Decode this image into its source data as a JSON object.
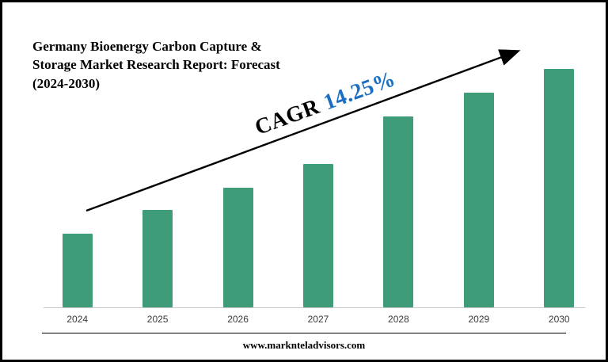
{
  "title": {
    "text": "Germany Bioenergy Carbon Capture & Storage Market Research Report: Forecast (2024-2030)"
  },
  "annotation": {
    "cagr_label": "CAGR",
    "cagr_value": "14.25%",
    "value_color": "#1b6ec2"
  },
  "footer": {
    "website": "www.marknteladvisors.com"
  },
  "chart_data": {
    "type": "bar",
    "title": "Germany Bioenergy Carbon Capture & Storage Market Research Report: Forecast (2024-2030)",
    "categories": [
      "2024",
      "2025",
      "2026",
      "2027",
      "2028",
      "2029",
      "2030"
    ],
    "values": [
      31,
      41,
      50,
      60,
      80,
      90,
      100
    ],
    "unit": "relative index (2030 = 100, axis values not labeled in image)",
    "bar_color": "#3e9c78",
    "annotation": "CAGR 14.25%",
    "trend": "increasing, straight upward arrow from first bar to last bar",
    "xlabel": "",
    "ylabel": "",
    "ylim": [
      0,
      100
    ],
    "grid": false,
    "y_axis_shown": false,
    "legend": "none"
  }
}
